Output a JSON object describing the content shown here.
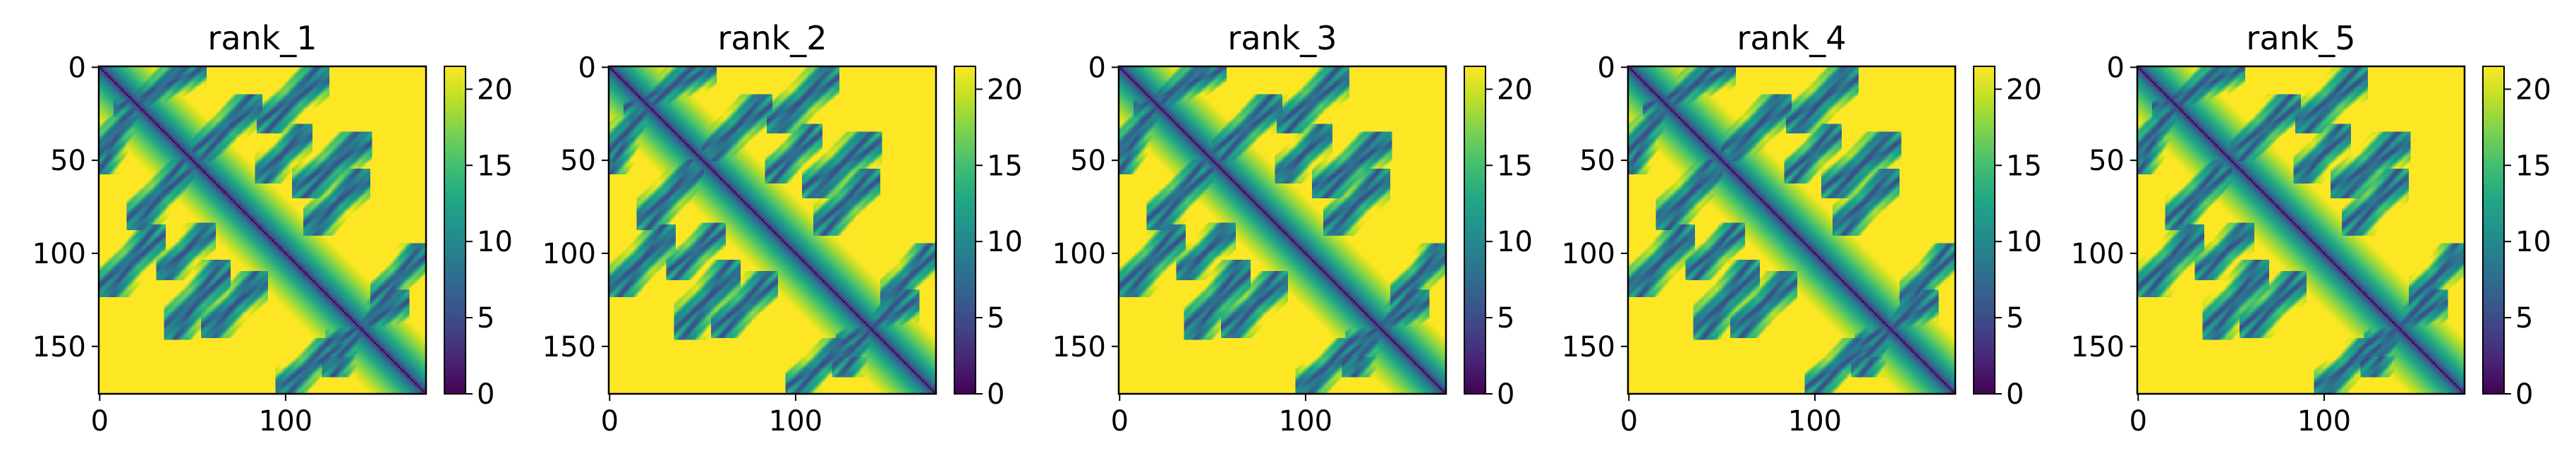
{
  "chart_data": {
    "type": "heatmap",
    "colormap": "viridis",
    "colorbar": {
      "min": 0,
      "max": 21.5,
      "ticks": [
        "0",
        "5",
        "10",
        "15",
        "20"
      ]
    },
    "panels": [
      {
        "title": "rank_1",
        "xticks": [
          "0",
          "100"
        ],
        "yticks": [
          "0",
          "50",
          "100",
          "150"
        ],
        "n": 176
      },
      {
        "title": "rank_2",
        "xticks": [
          "0",
          "100"
        ],
        "yticks": [
          "0",
          "50",
          "100",
          "150"
        ],
        "n": 176
      },
      {
        "title": "rank_3",
        "xticks": [
          "0",
          "100"
        ],
        "yticks": [
          "0",
          "50",
          "100",
          "150"
        ],
        "n": 176
      },
      {
        "title": "rank_4",
        "xticks": [
          "0",
          "100"
        ],
        "yticks": [
          "0",
          "50",
          "100",
          "150"
        ],
        "n": 176
      },
      {
        "title": "rank_5",
        "xticks": [
          "0",
          "100"
        ],
        "yticks": [
          "0",
          "50",
          "100",
          "150"
        ],
        "n": 176
      }
    ]
  }
}
